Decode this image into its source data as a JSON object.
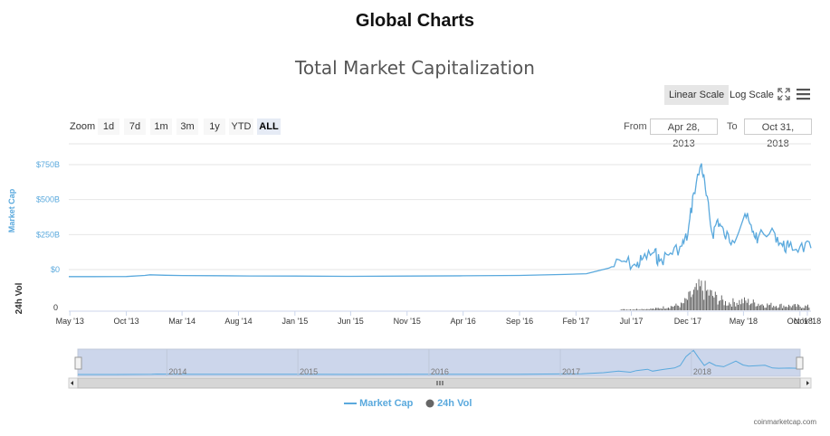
{
  "header": {
    "title": "Global Charts"
  },
  "controls": {
    "linear_scale_label": "Linear Scale",
    "log_scale_label": "Log Scale",
    "zoom_label": "Zoom",
    "zoom_buttons": [
      "1d",
      "7d",
      "1m",
      "3m",
      "1y",
      "YTD",
      "ALL"
    ],
    "zoom_active": "ALL",
    "from_label": "From",
    "from_value": "Apr 28, 2013",
    "to_label": "To",
    "to_value": "Oct 31, 2018",
    "fullscreen_icon": "expand-icon",
    "menu_icon": "hamburger-menu-icon"
  },
  "legend": {
    "market_cap_label": "Market Cap",
    "volume_label": "24h Vol"
  },
  "credit": "coinmarketcap.com",
  "colors": {
    "market_cap": "#5aa9dd",
    "volume": "#666666",
    "navigator_fill": "#ccd6eb"
  },
  "chart_data": {
    "type": "line",
    "title": "Total Market Capitalization",
    "yaxis_label": "Market Cap",
    "volume_axis_label": "24h Vol",
    "ylim": [
      0,
      850
    ],
    "y_unit": "billion USD",
    "yticks": [
      "$0",
      "$250B",
      "$500B",
      "$750B"
    ],
    "volume_ticks": [
      "0"
    ],
    "x_ticks": [
      "May '13",
      "Oct '13",
      "Mar '14",
      "Aug '14",
      "Jan '15",
      "Jun '15",
      "Nov '15",
      "Apr '16",
      "Sep '16",
      "Feb '17",
      "Jul '17",
      "Dec '17",
      "May '18",
      "Oct '18",
      "Nov '18"
    ],
    "navigator_years": [
      "2014",
      "2015",
      "2016",
      "2017",
      "2018"
    ],
    "legend_position": "bottom-center",
    "series": [
      {
        "name": "Market Cap",
        "x": [
          "2013-04-28",
          "2013-07-01",
          "2013-10-01",
          "2013-11-20",
          "2013-12-04",
          "2014-01-15",
          "2014-03-01",
          "2014-06-01",
          "2014-09-01",
          "2015-01-01",
          "2015-06-01",
          "2015-11-05",
          "2016-04-01",
          "2016-09-01",
          "2017-01-01",
          "2017-03-01",
          "2017-05-01",
          "2017-06-12",
          "2017-07-15",
          "2017-08-01",
          "2017-09-01",
          "2017-09-15",
          "2017-10-15",
          "2017-11-15",
          "2017-12-01",
          "2017-12-17",
          "2018-01-07",
          "2018-01-20",
          "2018-02-06",
          "2018-02-20",
          "2018-03-10",
          "2018-04-01",
          "2018-05-05",
          "2018-05-25",
          "2018-06-10",
          "2018-07-25",
          "2018-08-15",
          "2018-09-01",
          "2018-10-01",
          "2018-10-31"
        ],
        "values": [
          1.5,
          1.2,
          1.8,
          10,
          14,
          11,
          9,
          8,
          6,
          5,
          3.5,
          5,
          7,
          10,
          17,
          22,
          62,
          112,
          75,
          130,
          175,
          112,
          170,
          220,
          300,
          600,
          810,
          580,
          300,
          410,
          300,
          260,
          450,
          320,
          280,
          310,
          220,
          210,
          215,
          205
        ]
      },
      {
        "name": "24h Vol",
        "x": [
          "2017-06-01",
          "2017-09-01",
          "2017-11-15",
          "2017-12-15",
          "2018-01-07",
          "2018-02-06",
          "2018-03-15",
          "2018-05-01",
          "2018-07-01",
          "2018-09-01",
          "2018-10-31"
        ],
        "values": [
          2,
          4,
          15,
          45,
          60,
          40,
          20,
          25,
          15,
          12,
          10
        ]
      }
    ]
  }
}
